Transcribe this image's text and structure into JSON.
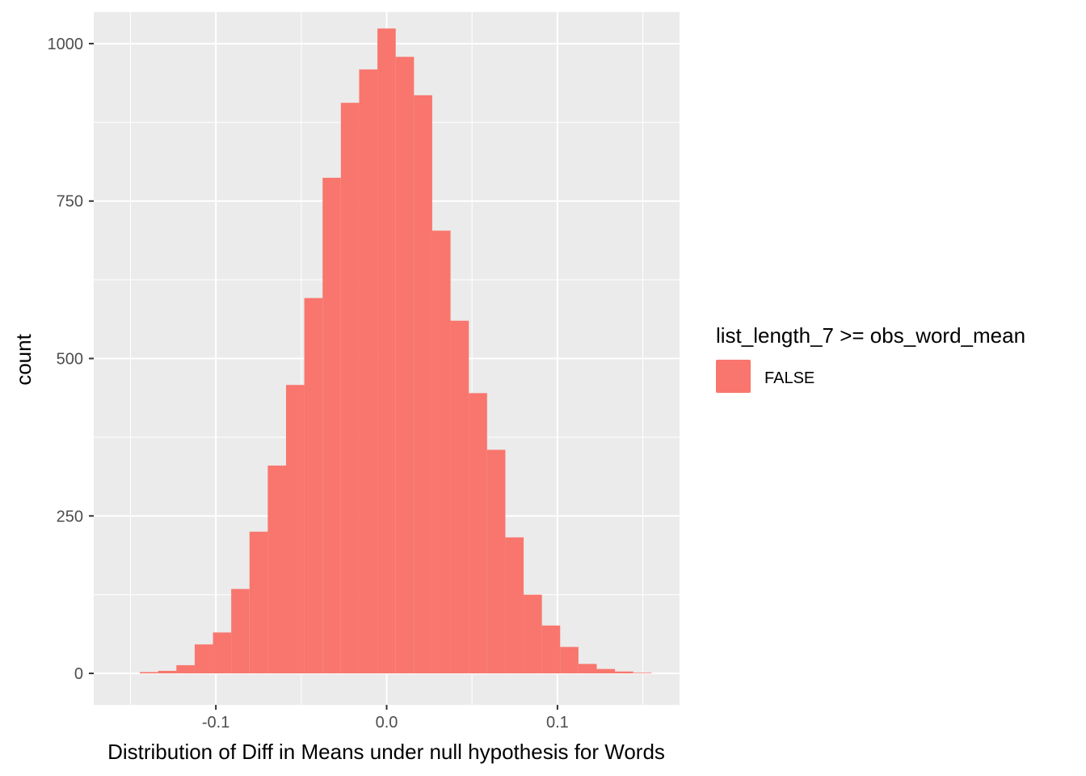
{
  "chart_data": {
    "type": "bar",
    "title": "",
    "xlabel": "Distribution of Diff in Means under null hypothesis for Words",
    "ylabel": "count",
    "xlim": [
      -0.1715,
      0.1715
    ],
    "ylim": [
      -50,
      1050
    ],
    "x_ticks": [
      -0.1,
      0.0,
      0.1
    ],
    "x_tick_labels": [
      "-0.1",
      "0.0",
      "0.1"
    ],
    "y_ticks": [
      0,
      250,
      500,
      750,
      1000
    ],
    "y_tick_labels": [
      "0",
      "250",
      "500",
      "750",
      "1000"
    ],
    "bin_width": 0.0107,
    "bins": [
      {
        "x0": -0.1445,
        "x1": -0.1338,
        "count": 2
      },
      {
        "x0": -0.1338,
        "x1": -0.1231,
        "count": 4
      },
      {
        "x0": -0.1231,
        "x1": -0.1124,
        "count": 13
      },
      {
        "x0": -0.1124,
        "x1": -0.1017,
        "count": 46
      },
      {
        "x0": -0.1017,
        "x1": -0.091,
        "count": 65
      },
      {
        "x0": -0.091,
        "x1": -0.0803,
        "count": 134
      },
      {
        "x0": -0.0803,
        "x1": -0.0696,
        "count": 225
      },
      {
        "x0": -0.0696,
        "x1": -0.0589,
        "count": 330
      },
      {
        "x0": -0.0589,
        "x1": -0.0482,
        "count": 458
      },
      {
        "x0": -0.0482,
        "x1": -0.0375,
        "count": 596
      },
      {
        "x0": -0.0375,
        "x1": -0.0268,
        "count": 787
      },
      {
        "x0": -0.0268,
        "x1": -0.0161,
        "count": 906
      },
      {
        "x0": -0.0161,
        "x1": -0.0054,
        "count": 959
      },
      {
        "x0": -0.0054,
        "x1": 0.0053,
        "count": 1024
      },
      {
        "x0": 0.0053,
        "x1": 0.016,
        "count": 979
      },
      {
        "x0": 0.016,
        "x1": 0.0267,
        "count": 918
      },
      {
        "x0": 0.0267,
        "x1": 0.0374,
        "count": 703
      },
      {
        "x0": 0.0374,
        "x1": 0.0481,
        "count": 560
      },
      {
        "x0": 0.0481,
        "x1": 0.0588,
        "count": 445
      },
      {
        "x0": 0.0588,
        "x1": 0.0695,
        "count": 355
      },
      {
        "x0": 0.0695,
        "x1": 0.0802,
        "count": 216
      },
      {
        "x0": 0.0802,
        "x1": 0.0909,
        "count": 125
      },
      {
        "x0": 0.0909,
        "x1": 0.1016,
        "count": 76
      },
      {
        "x0": 0.1016,
        "x1": 0.1123,
        "count": 42
      },
      {
        "x0": 0.1123,
        "x1": 0.123,
        "count": 15
      },
      {
        "x0": 0.123,
        "x1": 0.1337,
        "count": 7
      },
      {
        "x0": 0.1337,
        "x1": 0.1444,
        "count": 3
      },
      {
        "x0": 0.1444,
        "x1": 0.1551,
        "count": 1
      }
    ],
    "fill_color": "#F8766D",
    "panel_color": "#EBEBEB",
    "grid": true,
    "grid_color": "#FFFFFF",
    "legend": {
      "title": "list_length_7 >= obs_word_mean",
      "position": "right",
      "items": [
        {
          "label": "FALSE",
          "color": "#F8766D"
        }
      ]
    }
  }
}
